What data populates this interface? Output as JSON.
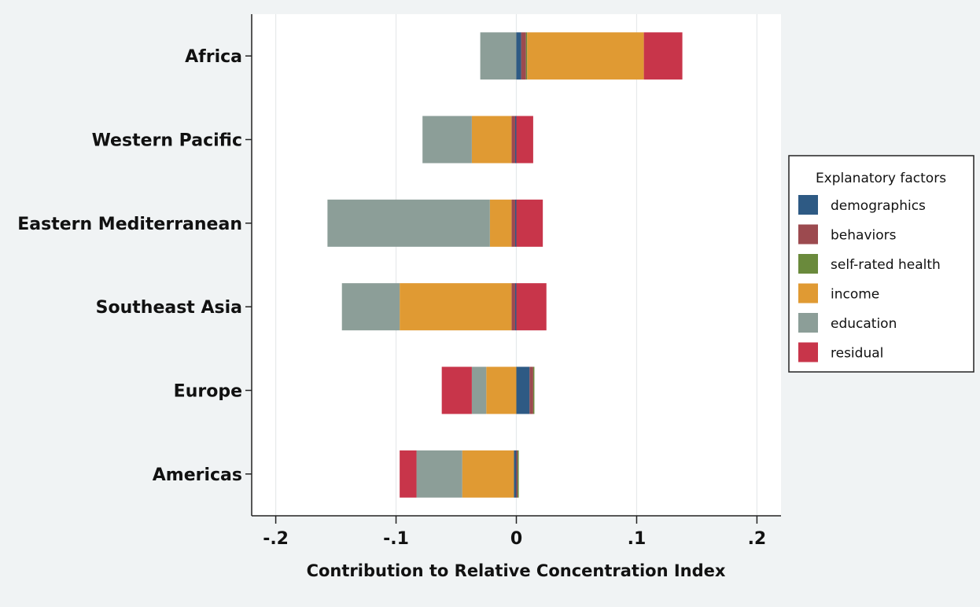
{
  "chart_data": {
    "type": "bar",
    "orientation": "horizontal",
    "stacked": true,
    "xlabel": "Contribution to Relative Concentration Index",
    "xlim": [
      -0.22,
      0.22
    ],
    "xticks": [
      {
        "value": -0.2,
        "label": "-.2"
      },
      {
        "value": -0.1,
        "label": "-.1"
      },
      {
        "value": 0,
        "label": "0"
      },
      {
        "value": 0.1,
        "label": ".1"
      },
      {
        "value": 0.2,
        "label": ".2"
      }
    ],
    "grid": true,
    "categories": [
      "Africa",
      "Western Pacific",
      "Eastern Mediterranean",
      "Southeast Asia",
      "Europe",
      "Americas"
    ],
    "legend": {
      "title": "Explanatory factors",
      "position": "right"
    },
    "series": [
      {
        "name": "demographics",
        "color": "#2e5a84",
        "values": [
          0.004,
          -0.001,
          -0.001,
          -0.001,
          0.011,
          -0.002
        ]
      },
      {
        "name": "behaviors",
        "color": "#9c4a4f",
        "values": [
          0.004,
          -0.003,
          -0.003,
          -0.003,
          0.003,
          0.001
        ]
      },
      {
        "name": "self-rated health",
        "color": "#6a8a3c",
        "values": [
          0.001,
          0.0,
          0.0,
          0.0,
          0.001,
          0.001
        ]
      },
      {
        "name": "income",
        "color": "#e09a33",
        "values": [
          0.097,
          -0.033,
          -0.018,
          -0.093,
          -0.025,
          -0.043
        ]
      },
      {
        "name": "education",
        "color": "#8c9e98",
        "values": [
          -0.03,
          -0.041,
          -0.135,
          -0.048,
          -0.012,
          -0.038
        ]
      },
      {
        "name": "residual",
        "color": "#c8354a",
        "values": [
          0.032,
          0.014,
          0.022,
          0.025,
          -0.025,
          -0.014
        ]
      }
    ]
  }
}
